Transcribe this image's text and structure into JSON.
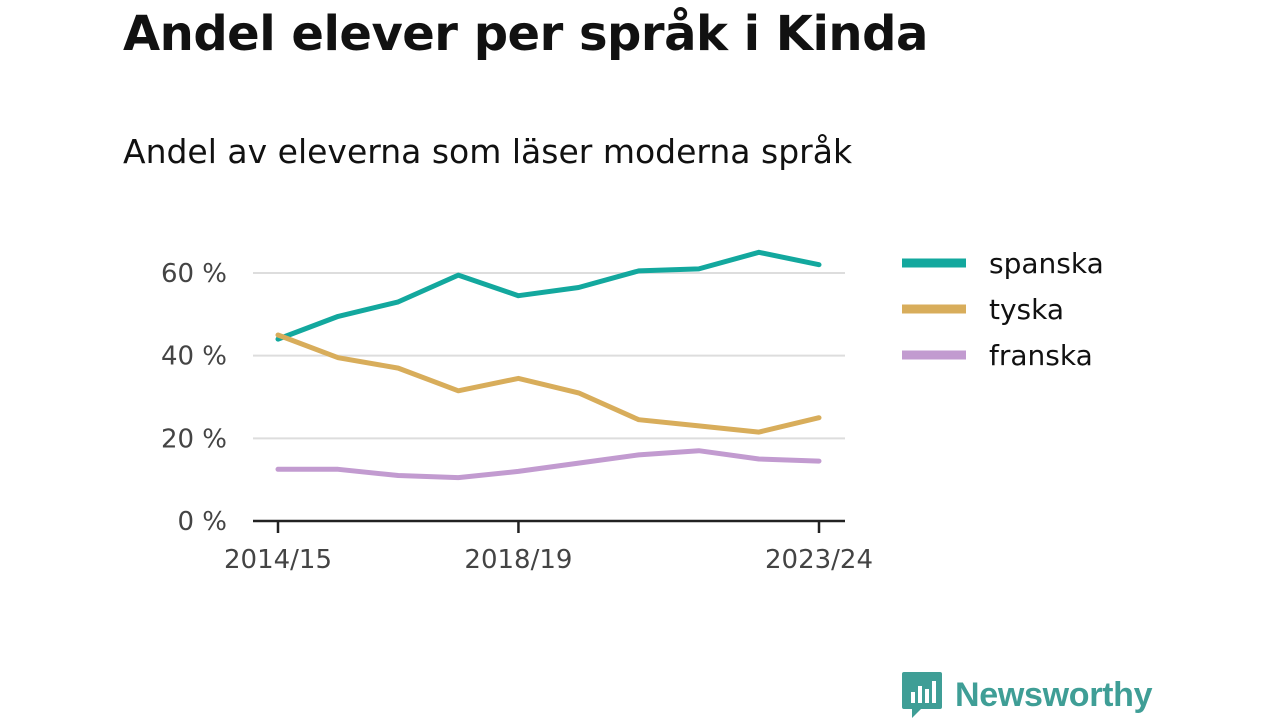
{
  "title": "Andel elever per språk i Kinda",
  "subtitle": "Andel av eleverna som läser moderna språk",
  "brand": {
    "name": "Newsworthy",
    "icon": "bar-chart-speech-bubble-icon",
    "color": "#3f9e96"
  },
  "chart_data": {
    "type": "line",
    "x": [
      "2014/15",
      "2015/16",
      "2016/17",
      "2017/18",
      "2018/19",
      "2019/20",
      "2020/21",
      "2021/22",
      "2022/23",
      "2023/24"
    ],
    "x_tick_labels": [
      "2014/15",
      "2018/19",
      "2023/24"
    ],
    "y_ticks": [
      0,
      20,
      40,
      60
    ],
    "y_tick_labels": [
      "0 %",
      "20 %",
      "40 %",
      "60 %"
    ],
    "ylim": [
      0,
      70
    ],
    "grid": "horizontal",
    "legend": "right",
    "series": [
      {
        "name": "spanska",
        "color": "#13a89e",
        "values": [
          44,
          49.5,
          53,
          59.5,
          54.5,
          56.5,
          60.5,
          61,
          65,
          62
        ]
      },
      {
        "name": "tyska",
        "color": "#d8ad5b",
        "values": [
          45,
          39.5,
          37,
          31.5,
          34.5,
          31,
          24.5,
          23,
          21.5,
          25
        ]
      },
      {
        "name": "franska",
        "color": "#c29bd0",
        "values": [
          12.5,
          12.5,
          11,
          10.5,
          12,
          14,
          16,
          17,
          15,
          14.5
        ]
      }
    ]
  }
}
